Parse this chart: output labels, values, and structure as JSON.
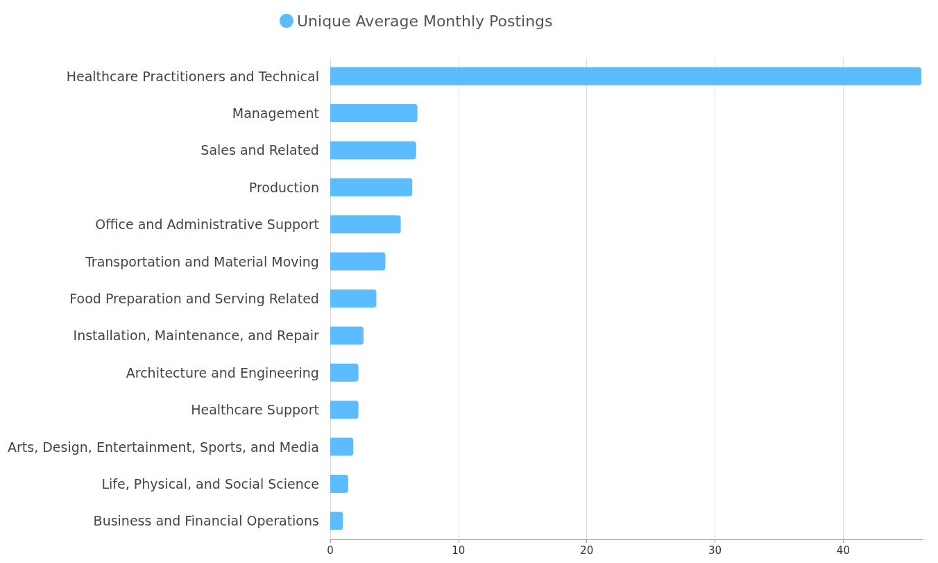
{
  "chart_data": {
    "type": "bar",
    "orientation": "horizontal",
    "categories": [
      "Healthcare Practitioners and Technical",
      "Management",
      "Sales and Related",
      "Production",
      "Office and Administrative Support",
      "Transportation and Material Moving",
      "Food Preparation and Serving Related",
      "Installation, Maintenance, and Repair",
      "Architecture and Engineering",
      "Healthcare Support",
      "Arts, Design, Entertainment, Sports, and Media",
      "Life, Physical, and Social Science",
      "Business and Financial Operations"
    ],
    "series": [
      {
        "name": "Unique Average Monthly Postings",
        "color": "#5bbcff",
        "values": [
          46.1,
          6.8,
          6.7,
          6.4,
          5.5,
          4.3,
          3.6,
          2.6,
          2.2,
          2.2,
          1.8,
          1.4,
          1.0
        ]
      }
    ],
    "xlim": [
      0,
      46.2
    ],
    "xticks": [
      0,
      10,
      20,
      30,
      40
    ],
    "grid": "x",
    "legend": "top"
  }
}
